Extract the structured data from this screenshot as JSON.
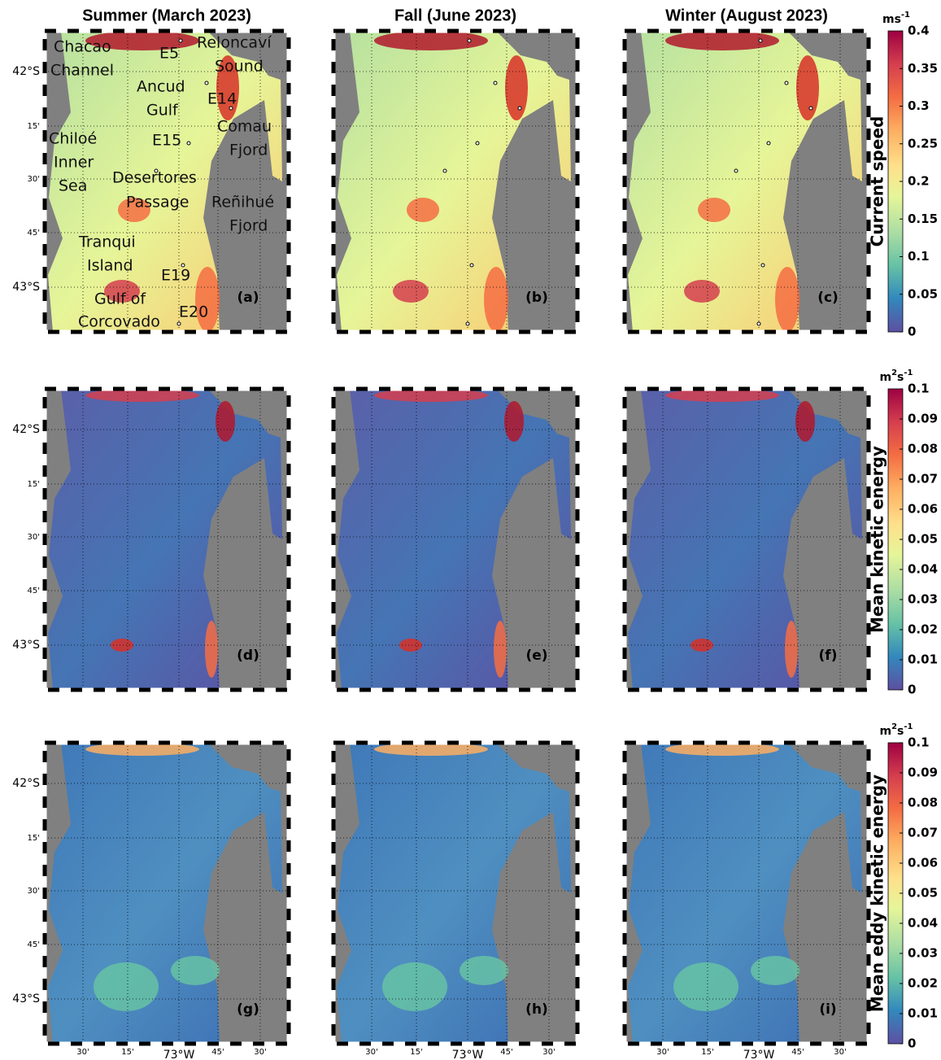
{
  "columns": [
    "Summer (March 2023)",
    "Fall (June 2023)",
    "Winter (August 2023)"
  ],
  "panel_labels": [
    "(a)",
    "(b)",
    "(c)",
    "(d)",
    "(e)",
    "(f)",
    "(g)",
    "(h)",
    "(i)"
  ],
  "lat_ticks": [
    "42°S",
    "15'",
    "30'",
    "45'",
    "43°S"
  ],
  "lon_ticks": [
    "30'",
    "15'",
    "73°W",
    "45'",
    "30'"
  ],
  "colorbars": [
    {
      "label": "Current speed",
      "unit": [
        "ms",
        "-1"
      ],
      "lim": [
        0,
        0.4
      ],
      "ticks": [
        0,
        0.05,
        0.1,
        0.15,
        0.2,
        0.25,
        0.3,
        0.35,
        0.4
      ]
    },
    {
      "label": "Mean kinetic energy",
      "unit": [
        "m",
        "2",
        "s",
        "-1"
      ],
      "lim": [
        0,
        0.1
      ],
      "ticks": [
        0,
        0.01,
        0.02,
        0.03,
        0.04,
        0.05,
        0.06,
        0.07,
        0.08,
        0.09,
        0.1
      ]
    },
    {
      "label": "Mean eddy kinetic energy",
      "unit": [
        "m",
        "2",
        "s",
        "-1"
      ],
      "lim": [
        0,
        0.1
      ],
      "ticks": [
        0,
        0.01,
        0.02,
        0.03,
        0.04,
        0.05,
        0.06,
        0.07,
        0.08,
        0.09,
        0.1
      ]
    }
  ],
  "places": [
    "Chacao",
    "Channel",
    "Reloncaví",
    "Sound",
    "Ancud",
    "Gulf",
    "E5",
    "E14",
    "Comau",
    "Fjord",
    "Chiloé",
    "Inner",
    "Sea",
    "E15",
    "Desertores",
    "Passage",
    "Reñihué",
    "Fjord",
    "Tranqui",
    "Island",
    "E19",
    "Gulf of",
    "Corcovado",
    "E20"
  ]
}
